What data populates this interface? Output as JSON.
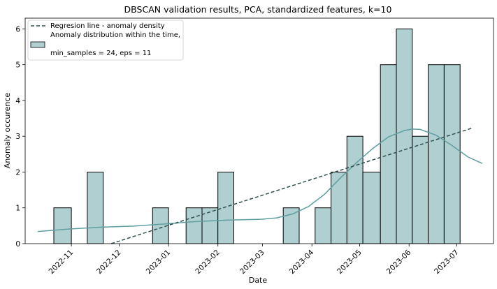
{
  "chart_data": {
    "type": "bar",
    "title": "DBSCAN validation results, PCA, standardized features, k=10",
    "xlabel": "Date",
    "ylabel": "Anomaly occurence",
    "ylim": [
      0,
      6.3
    ],
    "yticks": [
      0,
      1,
      2,
      3,
      4,
      5,
      6
    ],
    "xticks": [
      "2022-11",
      "2022-12",
      "2023-01",
      "2023-02",
      "2023-03",
      "2023-04",
      "2023-05",
      "2023-06",
      "2023-07"
    ],
    "grid": false,
    "legend_position": "top-left",
    "bins": [
      {
        "start": "2022-10-21",
        "end": "2022-11-01",
        "value": 1
      },
      {
        "start": "2022-11-01",
        "end": "2022-11-11",
        "value": 0
      },
      {
        "start": "2022-11-11",
        "end": "2022-11-21",
        "value": 2
      },
      {
        "start": "2022-11-21",
        "end": "2022-12-02",
        "value": 0
      },
      {
        "start": "2022-12-02",
        "end": "2022-12-12",
        "value": 0
      },
      {
        "start": "2022-12-12",
        "end": "2022-12-22",
        "value": 0
      },
      {
        "start": "2022-12-22",
        "end": "2023-01-01",
        "value": 1
      },
      {
        "start": "2023-01-01",
        "end": "2023-01-12",
        "value": 0
      },
      {
        "start": "2023-01-12",
        "end": "2023-01-22",
        "value": 1
      },
      {
        "start": "2023-01-22",
        "end": "2023-02-01",
        "value": 1
      },
      {
        "start": "2023-02-01",
        "end": "2023-02-11",
        "value": 2
      },
      {
        "start": "2023-02-11",
        "end": "2023-02-21",
        "value": 0
      },
      {
        "start": "2023-02-21",
        "end": "2023-03-03",
        "value": 0
      },
      {
        "start": "2023-03-03",
        "end": "2023-03-14",
        "value": 0
      },
      {
        "start": "2023-03-14",
        "end": "2023-03-24",
        "value": 1
      },
      {
        "start": "2023-03-24",
        "end": "2023-04-03",
        "value": 0
      },
      {
        "start": "2023-04-03",
        "end": "2023-04-13",
        "value": 1
      },
      {
        "start": "2023-04-13",
        "end": "2023-04-23",
        "value": 2
      },
      {
        "start": "2023-04-23",
        "end": "2023-05-03",
        "value": 3
      },
      {
        "start": "2023-05-03",
        "end": "2023-05-14",
        "value": 2
      },
      {
        "start": "2023-05-14",
        "end": "2023-05-24",
        "value": 5
      },
      {
        "start": "2023-05-24",
        "end": "2023-06-03",
        "value": 6
      },
      {
        "start": "2023-06-03",
        "end": "2023-06-13",
        "value": 3
      },
      {
        "start": "2023-06-13",
        "end": "2023-06-23",
        "value": 5
      },
      {
        "start": "2023-06-23",
        "end": "2023-07-03",
        "value": 5
      }
    ],
    "series": [
      {
        "name": "Regresion line - anomaly density",
        "style": "dashed",
        "color": "#2f4f4f",
        "points": [
          [
            "2022-11-26",
            0
          ],
          [
            "2023-07-10",
            3.22
          ]
        ]
      },
      {
        "name": "Anomaly distribution within the time,\n\nmin_samples = 24, eps = 11",
        "style": "kde",
        "color": "#5f9ea0",
        "points": [
          [
            "2022-10-11",
            0.34
          ],
          [
            "2022-10-31",
            0.41
          ],
          [
            "2022-11-20",
            0.46
          ],
          [
            "2022-12-10",
            0.49
          ],
          [
            "2022-12-30",
            0.55
          ],
          [
            "2023-01-19",
            0.62
          ],
          [
            "2023-02-08",
            0.66
          ],
          [
            "2023-02-28",
            0.68
          ],
          [
            "2023-03-10",
            0.72
          ],
          [
            "2023-03-20",
            0.83
          ],
          [
            "2023-03-30",
            1.04
          ],
          [
            "2023-04-09",
            1.38
          ],
          [
            "2023-04-19",
            1.84
          ],
          [
            "2023-04-29",
            2.26
          ],
          [
            "2023-05-09",
            2.65
          ],
          [
            "2023-05-19",
            2.98
          ],
          [
            "2023-05-29",
            3.16
          ],
          [
            "2023-06-03",
            3.2
          ],
          [
            "2023-06-08",
            3.19
          ],
          [
            "2023-06-18",
            3.03
          ],
          [
            "2023-06-28",
            2.74
          ],
          [
            "2023-07-08",
            2.42
          ],
          [
            "2023-07-17",
            2.24
          ]
        ]
      }
    ],
    "colors": {
      "bar_fill": "#b0cfd1",
      "bar_edge": "#000000",
      "kde_line": "#5f9ea0",
      "regression_line": "#2f4f4f"
    }
  }
}
